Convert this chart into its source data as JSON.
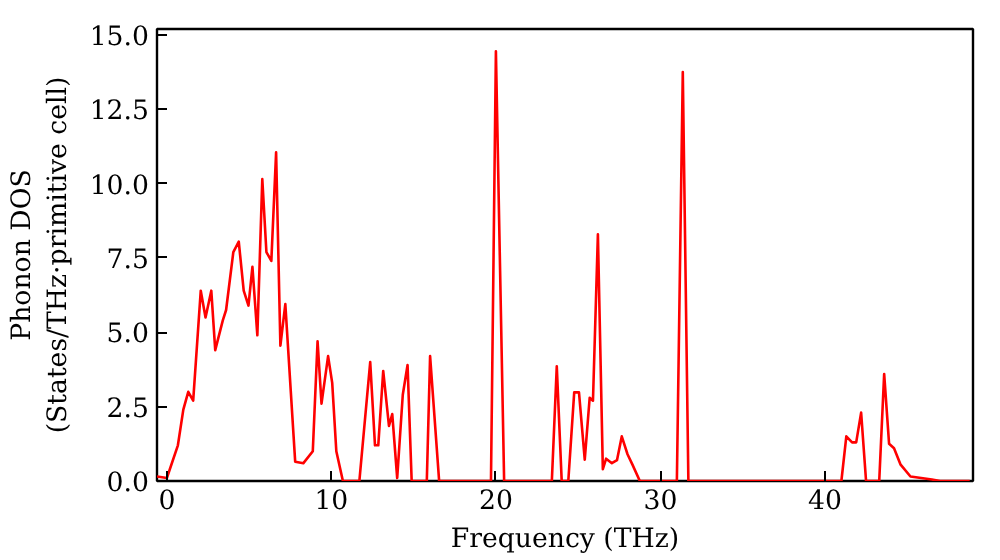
{
  "chart_data": {
    "type": "line",
    "xlabel": "Frequency (THz)",
    "ylabel": "Phonon DOS\n(States/THz·primitive cell)",
    "x": [
      -0.6,
      0,
      0.67,
      1.0,
      1.3,
      1.6,
      2.06,
      2.35,
      2.7,
      2.94,
      3.4,
      3.6,
      4.04,
      4.37,
      4.67,
      4.96,
      5.2,
      5.5,
      5.8,
      6.05,
      6.35,
      6.64,
      6.9,
      7.2,
      7.8,
      8.3,
      8.87,
      9.16,
      9.4,
      9.8,
      10.05,
      10.3,
      10.7,
      11.7,
      12.36,
      12.65,
      12.85,
      13.15,
      13.5,
      13.7,
      14.0,
      14.34,
      14.63,
      14.88,
      15.8,
      16.0,
      16.55,
      19.7,
      20.0,
      20.5,
      23.4,
      23.7,
      24.0,
      24.4,
      24.76,
      25.05,
      25.4,
      25.7,
      25.9,
      26.2,
      26.5,
      26.7,
      27.05,
      27.36,
      27.65,
      28.0,
      28.3,
      28.75,
      31.0,
      31.36,
      31.7,
      41.0,
      41.3,
      41.65,
      41.9,
      42.2,
      42.5,
      43.3,
      43.6,
      43.9,
      44.2,
      44.6,
      45.2,
      46.5,
      47.0,
      48.8
    ],
    "series": [
      {
        "color": "#ff0000",
        "values": [
          0.15,
          0.1,
          1.2,
          2.4,
          3.0,
          2.7,
          6.4,
          5.5,
          6.4,
          4.4,
          5.4,
          5.75,
          7.7,
          8.05,
          6.4,
          5.9,
          7.2,
          4.9,
          10.15,
          7.7,
          7.4,
          11.05,
          4.55,
          5.95,
          0.65,
          0.6,
          1.0,
          4.7,
          2.6,
          4.2,
          3.3,
          1.0,
          0,
          0,
          4.0,
          1.2,
          1.2,
          3.7,
          1.85,
          2.25,
          0.1,
          2.9,
          3.9,
          0,
          0,
          4.2,
          0,
          0,
          14.45,
          0,
          0,
          3.86,
          0,
          0,
          2.98,
          2.98,
          0.72,
          2.8,
          2.7,
          8.3,
          0.4,
          0.75,
          0.6,
          0.7,
          1.5,
          0.9,
          0.55,
          0,
          0,
          13.75,
          0,
          0,
          1.5,
          1.3,
          1.3,
          2.3,
          0,
          0,
          3.6,
          1.25,
          1.1,
          0.55,
          0.15,
          0.05,
          0,
          0
        ]
      }
    ],
    "xlim": [
      -0.6,
      49
    ],
    "ylim": [
      0,
      15.2
    ],
    "xticks": [
      0,
      10,
      20,
      30,
      40
    ],
    "yticks": [
      {
        "value": 0,
        "label": "0.0"
      },
      {
        "value": 2.5,
        "label": "2.5"
      },
      {
        "value": 5,
        "label": "5.0"
      },
      {
        "value": 7.5,
        "label": "7.5"
      },
      {
        "value": 10,
        "label": "10.0"
      },
      {
        "value": 12.5,
        "label": "12.5"
      },
      {
        "value": 15,
        "label": "15.0"
      }
    ],
    "grid": false
  }
}
